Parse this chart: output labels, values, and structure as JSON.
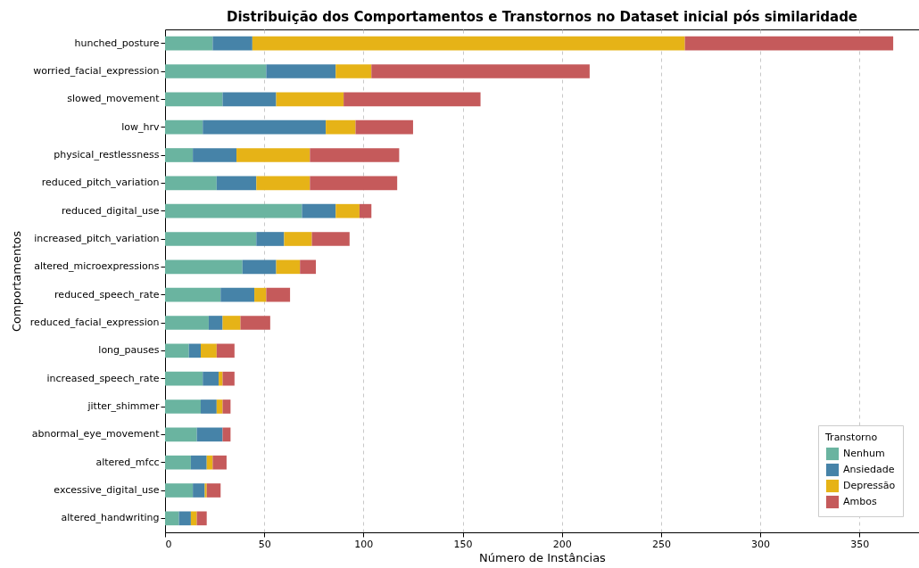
{
  "chart_data": {
    "type": "bar",
    "orientation": "horizontal",
    "stacked": true,
    "title": "Distribuição dos Comportamentos e Transtornos no Dataset inicial pós similaridade",
    "xlabel": "Número de Instâncias",
    "ylabel": "Comportamentos",
    "legend_title": "Transtorno",
    "legend": "bottom right",
    "grid": "x",
    "categories": [
      "hunched_posture",
      "worried_facial_expression",
      "slowed_movement",
      "low_hrv",
      "physical_restlessness",
      "reduced_pitch_variation",
      "reduced_digital_use",
      "increased_pitch_variation",
      "altered_microexpressions",
      "reduced_speech_rate",
      "reduced_facial_expression",
      "long_pauses",
      "increased_speech_rate",
      "jitter_shimmer",
      "abnormal_eye_movement",
      "altered_mfcc",
      "excessive_digital_use",
      "altered_handwriting"
    ],
    "xlim": [
      0,
      380
    ],
    "xticks": [
      0,
      50,
      100,
      150,
      200,
      250,
      300,
      350
    ],
    "series": [
      {
        "name": "Nenhum",
        "color": "#6ab4a0",
        "values": [
          24,
          51,
          29,
          19,
          14,
          26,
          69,
          46,
          39,
          28,
          22,
          12,
          19,
          18,
          16,
          13,
          14,
          7
        ]
      },
      {
        "name": "Ansiedade",
        "color": "#4683a8",
        "values": [
          20,
          35,
          27,
          62,
          22,
          20,
          17,
          14,
          17,
          17,
          7,
          6,
          8,
          8,
          13,
          8,
          6,
          6
        ]
      },
      {
        "name": "Depressão",
        "color": "#e6b317",
        "values": [
          218,
          18,
          34,
          15,
          37,
          27,
          12,
          14,
          12,
          6,
          9,
          8,
          2,
          3,
          0,
          3,
          1,
          3
        ]
      },
      {
        "name": "Ambos",
        "color": "#c55a5b",
        "values": [
          105,
          110,
          69,
          29,
          45,
          44,
          6,
          19,
          8,
          12,
          15,
          9,
          6,
          4,
          4,
          7,
          7,
          5
        ]
      }
    ]
  }
}
